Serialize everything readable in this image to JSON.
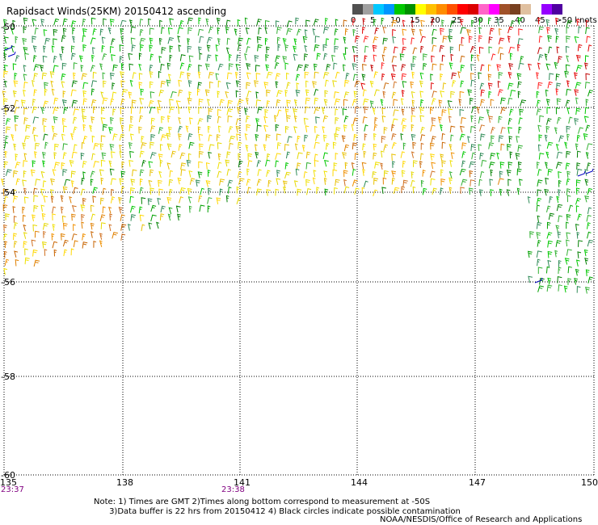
{
  "title": "Rapidsact Winds(25KM) 20150412 ascending",
  "legend": {
    "labels": [
      "0",
      "5",
      "10",
      "15",
      "20",
      "25",
      "30",
      "35",
      "40",
      "45",
      ">50 knots"
    ],
    "colors": [
      "#505050",
      "#a0a0a0",
      "#00c8ff",
      "#0096ff",
      "#00c800",
      "#009000",
      "#ffff00",
      "#ffc000",
      "#ff8c00",
      "#ff5000",
      "#ff0000",
      "#dc0000",
      "#ff64c8",
      "#ff00ff",
      "#a05028",
      "#784020",
      "#e0c0a0",
      "#ffffff",
      "#9600ff",
      "#5000a0"
    ]
  },
  "map": {
    "lat_labels": [
      "-50",
      "-52",
      "-54",
      "-56",
      "-58",
      "-60"
    ],
    "lon_labels": [
      "135",
      "138",
      "141",
      "144",
      "147",
      "150"
    ],
    "time_labels": [
      "23:37",
      "23:38"
    ]
  },
  "notes": {
    "line1": "Note: 1) Times are GMT 2)Times along bottom correspond to measurement at -50S",
    "line2": "      3)Data buffer is 22 hrs from 20150412 4) Black circles indicate possible contamination"
  },
  "credit": "NOAA/NESDIS/Office of Research and Applications"
}
